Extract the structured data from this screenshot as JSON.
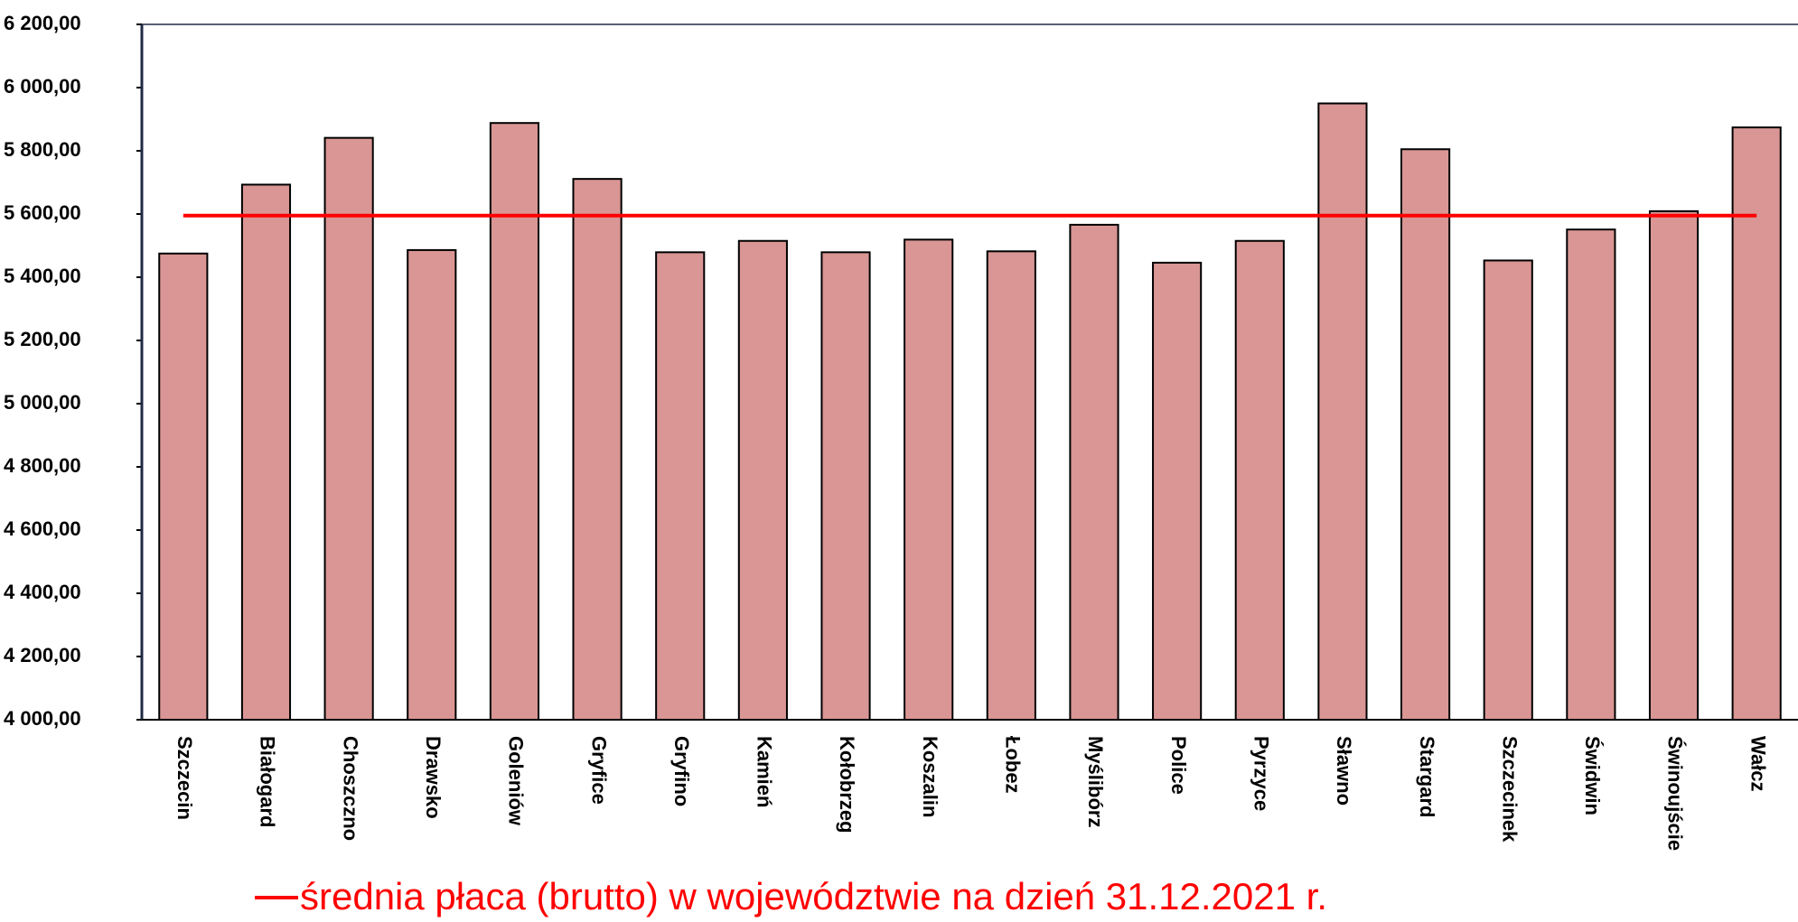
{
  "chart_data": {
    "type": "bar",
    "categories": [
      "Szczecin",
      "Białogard",
      "Choszczno",
      "Drawsko",
      "Goleniów",
      "Gryfice",
      "Gryfino",
      "Kamień",
      "Kołobrzeg",
      "Koszalin",
      "Łobez",
      "Myślibórz",
      "Police",
      "Pyrzyce",
      "Sławno",
      "Stargard",
      "Szczecinek",
      "Świdwin",
      "Świnoujście",
      "Wałcz"
    ],
    "values": [
      5475,
      5693,
      5841,
      5486,
      5888,
      5711,
      5479,
      5515,
      5479,
      5519,
      5482,
      5566,
      5446,
      5515,
      5950,
      5805,
      5453,
      5551,
      5609,
      5874
    ],
    "color": "#d99694",
    "ylim": [
      4000,
      6200
    ],
    "yticks": [
      {
        "value": 4000,
        "label": "4 000,00"
      },
      {
        "value": 4200,
        "label": "4 200,00"
      },
      {
        "value": 4400,
        "label": "4 400,00"
      },
      {
        "value": 4600,
        "label": "4 600,00"
      },
      {
        "value": 4800,
        "label": "4 800,00"
      },
      {
        "value": 5000,
        "label": "5 000,00"
      },
      {
        "value": 5200,
        "label": "5 200,00"
      },
      {
        "value": 5400,
        "label": "5 400,00"
      },
      {
        "value": 5600,
        "label": "5 600,00"
      },
      {
        "value": 5800,
        "label": "5 800,00"
      },
      {
        "value": 6000,
        "label": "6 000,00"
      },
      {
        "value": 6200,
        "label": "6 200,00"
      }
    ],
    "reference_line": {
      "name": "średnia płaca (brutto)  w województwie na dzień 31.12.2021 r.",
      "value": 5595,
      "color": "#ff0000"
    },
    "grid": false
  }
}
